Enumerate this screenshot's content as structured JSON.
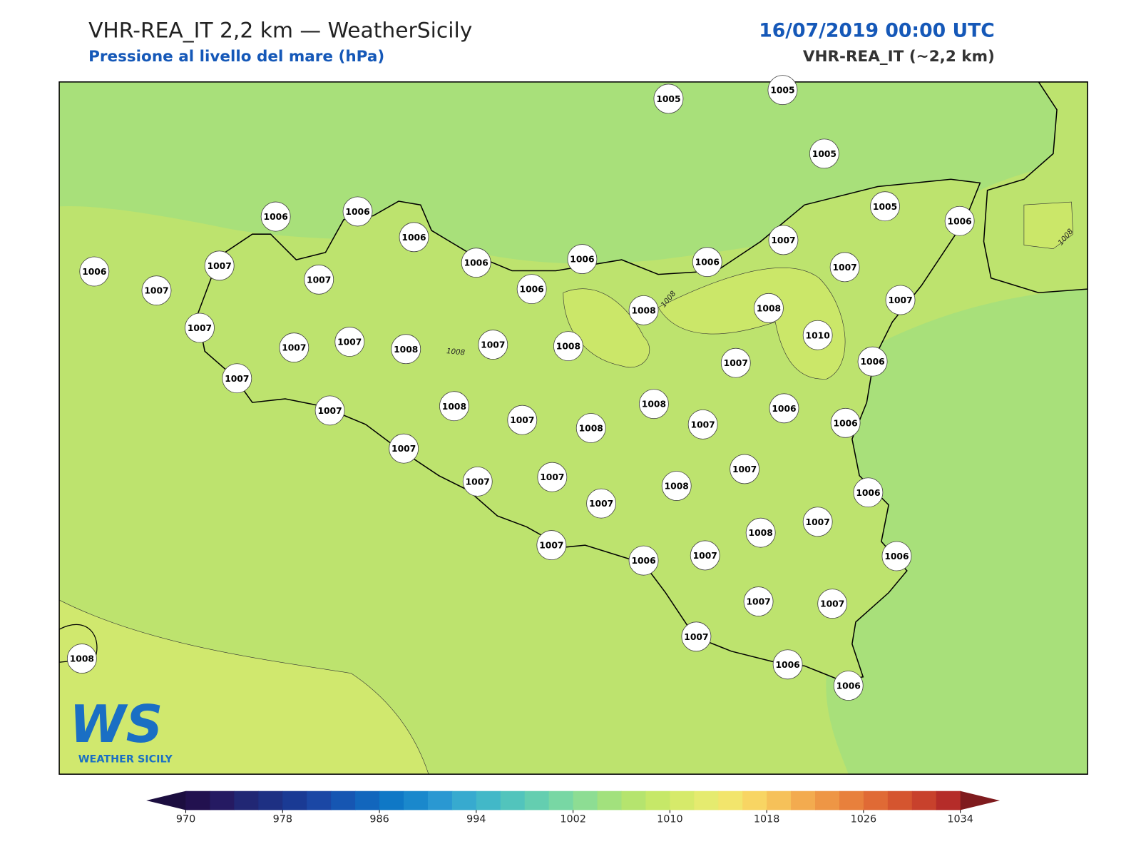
{
  "header": {
    "title": "VHR-REA_IT 2,2 km — WeatherSicily",
    "subtitle": "Pressione al livello del mare (hPa)",
    "date": "16/07/2019 00:00 UTC",
    "model": "VHR-REA_IT (~2,2 km)"
  },
  "map": {
    "stations": [
      1005,
      1005,
      1005,
      1005,
      1006,
      1006,
      1006,
      1006,
      1006,
      1006,
      1006,
      1006,
      1007,
      1007,
      1007,
      1006,
      1007,
      1007,
      1007,
      1007,
      1007,
      1007,
      1008,
      1007,
      1008,
      1008,
      1008,
      1010,
      1006,
      1007,
      1007,
      1007,
      1008,
      1007,
      1008,
      1008,
      1007,
      1006,
      1006,
      1007,
      1007,
      1007,
      1007,
      1008,
      1007,
      1006,
      1007,
      1008,
      1007,
      1006,
      1007,
      1006,
      1007,
      1007,
      1007,
      1006,
      1006,
      1008
    ],
    "contour_labels": [
      "1008",
      "1008",
      "1008"
    ]
  },
  "logo": {
    "mark": "WS",
    "text": "WEATHER SICILY"
  },
  "colorbar": {
    "range": [
      970,
      1034
    ],
    "ticks": [
      970,
      978,
      986,
      994,
      1002,
      1010,
      1018,
      1026,
      1034
    ],
    "colors": [
      "#22114f",
      "#251a62",
      "#212774",
      "#1e3083",
      "#1a3a94",
      "#1b47a5",
      "#1656b2",
      "#1266bd",
      "#0f78c6",
      "#1a88cc",
      "#2a98d2",
      "#37aacf",
      "#42b8c8",
      "#52c4bc",
      "#64ceb0",
      "#78d7a4",
      "#8ddd93",
      "#a2e17d",
      "#b5e46e",
      "#c6e868",
      "#d6ea6a",
      "#e5eb6f",
      "#f2e56c",
      "#f8d563",
      "#f6c159",
      "#f3ab4f",
      "#ee9645",
      "#e8803c",
      "#e06a35",
      "#d5552f",
      "#c8412c",
      "#b52c29"
    ]
  }
}
